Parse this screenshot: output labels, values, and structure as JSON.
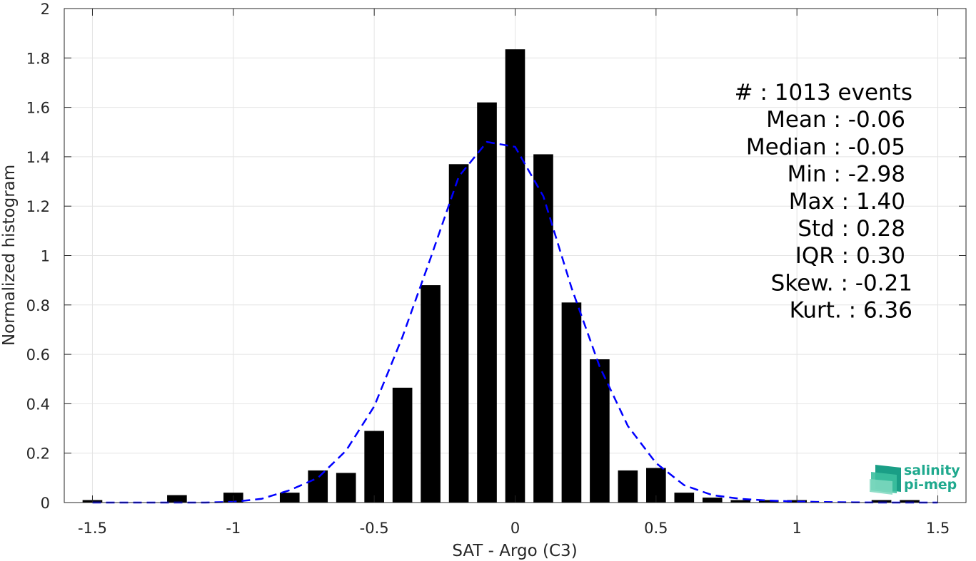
{
  "chart_data": {
    "type": "bar",
    "title": "",
    "xlabel": "SAT - Argo (C3)",
    "ylabel": "Normalized histogram",
    "xlim": [
      -1.6,
      1.6
    ],
    "ylim": [
      0,
      2
    ],
    "xticks": [
      "-1.5",
      "-1",
      "-0.5",
      "0",
      "0.5",
      "1",
      "1.5"
    ],
    "xtick_values": [
      -1.5,
      -1,
      -0.5,
      0,
      0.5,
      1,
      1.5
    ],
    "yticks": [
      "0",
      "0.2",
      "0.4",
      "0.6",
      "0.8",
      "1",
      "1.2",
      "1.4",
      "1.6",
      "1.8",
      "2"
    ],
    "ytick_values": [
      0,
      0.2,
      0.4,
      0.6,
      0.8,
      1,
      1.2,
      1.4,
      1.6,
      1.8,
      2
    ],
    "grid": true,
    "bar_width": 0.07,
    "bars": {
      "x": [
        -1.5,
        -1.2,
        -1.0,
        -0.8,
        -0.7,
        -0.6,
        -0.5,
        -0.4,
        -0.3,
        -0.2,
        -0.1,
        0.0,
        0.1,
        0.2,
        0.3,
        0.4,
        0.5,
        0.6,
        0.7,
        0.8,
        0.9,
        1.0,
        1.3,
        1.4
      ],
      "values": [
        0.01,
        0.03,
        0.04,
        0.04,
        0.13,
        0.12,
        0.29,
        0.465,
        0.88,
        1.37,
        1.62,
        1.835,
        1.41,
        0.81,
        0.58,
        0.13,
        0.14,
        0.04,
        0.02,
        0.01,
        0.01,
        0.01,
        0.01,
        0.01
      ],
      "color": "#000000"
    },
    "fit_curve": {
      "style": "dashed",
      "color": "#0000ff",
      "x": [
        -1.5,
        -1.4,
        -1.3,
        -1.2,
        -1.1,
        -1.0,
        -0.9,
        -0.8,
        -0.7,
        -0.6,
        -0.5,
        -0.4,
        -0.3,
        -0.2,
        -0.1,
        0.0,
        0.1,
        0.2,
        0.3,
        0.4,
        0.5,
        0.6,
        0.7,
        0.8,
        0.9,
        1.0,
        1.1,
        1.2,
        1.3,
        1.4,
        1.5
      ],
      "y": [
        0.0,
        0.0,
        0.0,
        0.0,
        0.0,
        0.003,
        0.015,
        0.05,
        0.1,
        0.21,
        0.39,
        0.67,
        0.99,
        1.32,
        1.46,
        1.44,
        1.24,
        0.87,
        0.55,
        0.31,
        0.16,
        0.07,
        0.03,
        0.015,
        0.008,
        0.004,
        0.002,
        0.001,
        0.0,
        0.0,
        0.0
      ]
    },
    "annotations": [
      "#  : 1013 events",
      "Mean : -0.06",
      "Median : -0.05",
      "Min : -2.98",
      "Max : 1.40",
      "Std : 0.28",
      "IQR : 0.30",
      "Skew. : -0.21",
      "Kurt. : 6.36"
    ]
  },
  "logo": {
    "line1": "salinity",
    "line2": "pi-mep",
    "color": "#1fa98e"
  }
}
